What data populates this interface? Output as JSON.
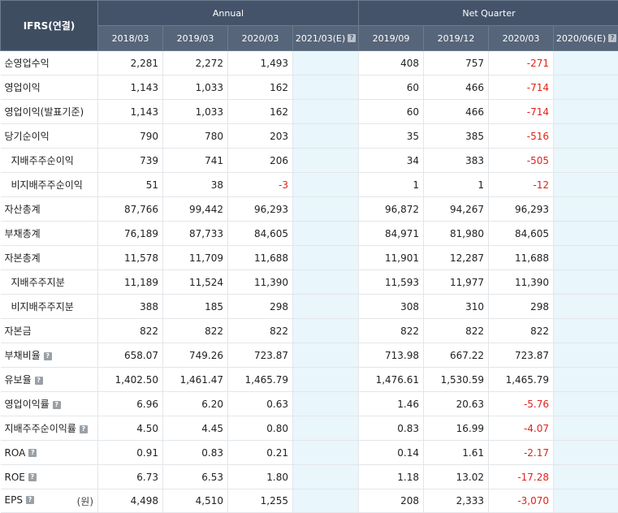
{
  "header": {
    "corner": "IFRS(연결)",
    "annual_label": "Annual",
    "quarter_label": "Net Quarter",
    "annual_periods": [
      "2018/03",
      "2019/03",
      "2020/03",
      "2021/03(E)"
    ],
    "quarter_periods": [
      "2019/09",
      "2019/12",
      "2020/03",
      "2020/06(E)"
    ]
  },
  "rows": [
    {
      "label": "순영업수익",
      "indent": false,
      "help": false,
      "unit": "",
      "values": [
        "2,281",
        "2,272",
        "1,493",
        "",
        "408",
        "757",
        "-271",
        ""
      ]
    },
    {
      "label": "영업이익",
      "indent": false,
      "help": false,
      "unit": "",
      "values": [
        "1,143",
        "1,033",
        "162",
        "",
        "60",
        "466",
        "-714",
        ""
      ]
    },
    {
      "label": "영업이익(발표기준)",
      "indent": false,
      "help": false,
      "unit": "",
      "values": [
        "1,143",
        "1,033",
        "162",
        "",
        "60",
        "466",
        "-714",
        ""
      ]
    },
    {
      "label": "당기순이익",
      "indent": false,
      "help": false,
      "unit": "",
      "values": [
        "790",
        "780",
        "203",
        "",
        "35",
        "385",
        "-516",
        ""
      ]
    },
    {
      "label": "지배주주순이익",
      "indent": true,
      "help": false,
      "unit": "",
      "values": [
        "739",
        "741",
        "206",
        "",
        "34",
        "383",
        "-505",
        ""
      ]
    },
    {
      "label": "비지배주주순이익",
      "indent": true,
      "help": false,
      "unit": "",
      "values": [
        "51",
        "38",
        "-3",
        "",
        "1",
        "1",
        "-12",
        ""
      ]
    },
    {
      "label": "자산총계",
      "indent": false,
      "help": false,
      "unit": "",
      "values": [
        "87,766",
        "99,442",
        "96,293",
        "",
        "96,872",
        "94,267",
        "96,293",
        ""
      ]
    },
    {
      "label": "부채총계",
      "indent": false,
      "help": false,
      "unit": "",
      "values": [
        "76,189",
        "87,733",
        "84,605",
        "",
        "84,971",
        "81,980",
        "84,605",
        ""
      ]
    },
    {
      "label": "자본총계",
      "indent": false,
      "help": false,
      "unit": "",
      "values": [
        "11,578",
        "11,709",
        "11,688",
        "",
        "11,901",
        "12,287",
        "11,688",
        ""
      ]
    },
    {
      "label": "지배주주지분",
      "indent": true,
      "help": false,
      "unit": "",
      "values": [
        "11,189",
        "11,524",
        "11,390",
        "",
        "11,593",
        "11,977",
        "11,390",
        ""
      ]
    },
    {
      "label": "비지배주주지분",
      "indent": true,
      "help": false,
      "unit": "",
      "values": [
        "388",
        "185",
        "298",
        "",
        "308",
        "310",
        "298",
        ""
      ]
    },
    {
      "label": "자본금",
      "indent": false,
      "help": false,
      "unit": "",
      "values": [
        "822",
        "822",
        "822",
        "",
        "822",
        "822",
        "822",
        ""
      ]
    },
    {
      "label": "부채비율",
      "indent": false,
      "help": true,
      "unit": "",
      "values": [
        "658.07",
        "749.26",
        "723.87",
        "",
        "713.98",
        "667.22",
        "723.87",
        ""
      ]
    },
    {
      "label": "유보율",
      "indent": false,
      "help": true,
      "unit": "",
      "values": [
        "1,402.50",
        "1,461.47",
        "1,465.79",
        "",
        "1,476.61",
        "1,530.59",
        "1,465.79",
        ""
      ]
    },
    {
      "label": "영업이익률",
      "indent": false,
      "help": true,
      "unit": "",
      "values": [
        "6.96",
        "6.20",
        "0.63",
        "",
        "1.46",
        "20.63",
        "-5.76",
        ""
      ]
    },
    {
      "label": "지배주주순이익률",
      "indent": false,
      "help": true,
      "unit": "",
      "values": [
        "4.50",
        "4.45",
        "0.80",
        "",
        "0.83",
        "16.99",
        "-4.07",
        ""
      ]
    },
    {
      "label": "ROA",
      "indent": false,
      "help": true,
      "unit": "",
      "values": [
        "0.91",
        "0.83",
        "0.21",
        "",
        "0.14",
        "1.61",
        "-2.17",
        ""
      ]
    },
    {
      "label": "ROE",
      "indent": false,
      "help": true,
      "unit": "",
      "values": [
        "6.73",
        "6.53",
        "1.80",
        "",
        "1.18",
        "13.02",
        "-17.28",
        ""
      ]
    },
    {
      "label": "EPS",
      "indent": false,
      "help": true,
      "unit": "(원)",
      "values": [
        "4,498",
        "4,510",
        "1,255",
        "",
        "208",
        "2,333",
        "-3,070",
        ""
      ]
    }
  ],
  "help_icon_glyph": "?",
  "colors": {
    "header_bg": "#4f5e73",
    "estimate_bg": "#e9f6fb",
    "negative": "#e0221b"
  }
}
